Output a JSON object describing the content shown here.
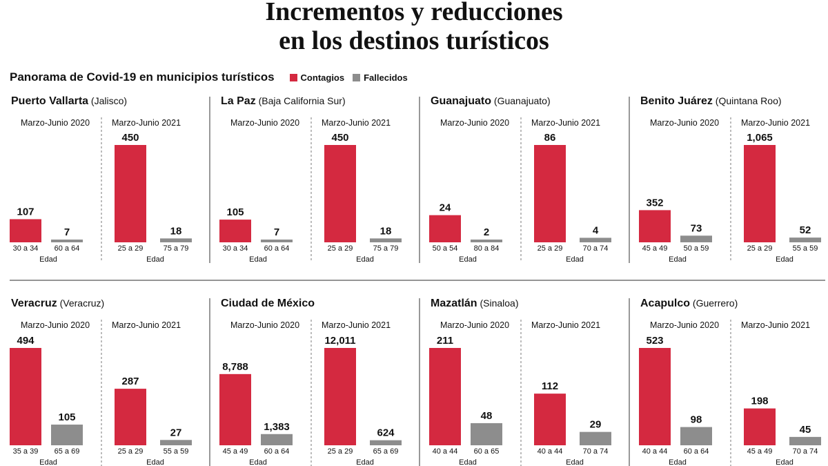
{
  "title": {
    "line1": "Incrementos y reducciones",
    "line2": "en los destinos turísticos"
  },
  "subtitle": "Panorama de Covid-19 en municipios turísticos",
  "legend": [
    {
      "label": "Contagios",
      "color": "#d42940"
    },
    {
      "label": "Fallecidos",
      "color": "#8d8d8d"
    }
  ],
  "colors": {
    "contagios": "#d42940",
    "fallecidos": "#8d8d8d",
    "divider": "#555555"
  },
  "chart_data": [
    {
      "type": "bar",
      "title": "Puerto Vallarta",
      "subtitle": "(Jalisco)",
      "xlabel": "Edad",
      "periods": [
        {
          "label": "Marzo-Junio 2020",
          "bars": [
            {
              "series": "Contagios",
              "value": 107,
              "value_label": "107",
              "category": "30 a 34"
            },
            {
              "series": "Fallecidos",
              "value": 7,
              "value_label": "7",
              "category": "60 a 64"
            }
          ]
        },
        {
          "label": "Marzo-Junio 2021",
          "bars": [
            {
              "series": "Contagios",
              "value": 450,
              "value_label": "450",
              "category": "25 a 29"
            },
            {
              "series": "Fallecidos",
              "value": 18,
              "value_label": "18",
              "category": "75 a 79"
            }
          ]
        }
      ]
    },
    {
      "type": "bar",
      "title": "La Paz",
      "subtitle": "(Baja California Sur)",
      "xlabel": "Edad",
      "periods": [
        {
          "label": "Marzo-Junio 2020",
          "bars": [
            {
              "series": "Contagios",
              "value": 105,
              "value_label": "105",
              "category": "30 a 34"
            },
            {
              "series": "Fallecidos",
              "value": 7,
              "value_label": "7",
              "category": "60 a 64"
            }
          ]
        },
        {
          "label": "Marzo-Junio 2021",
          "bars": [
            {
              "series": "Contagios",
              "value": 450,
              "value_label": "450",
              "category": "25 a 29"
            },
            {
              "series": "Fallecidos",
              "value": 18,
              "value_label": "18",
              "category": "75 a 79"
            }
          ]
        }
      ]
    },
    {
      "type": "bar",
      "title": "Guanajuato",
      "subtitle": "(Guanajuato)",
      "xlabel": "Edad",
      "periods": [
        {
          "label": "Marzo-Junio 2020",
          "bars": [
            {
              "series": "Contagios",
              "value": 24,
              "value_label": "24",
              "category": "50 a 54"
            },
            {
              "series": "Fallecidos",
              "value": 2,
              "value_label": "2",
              "category": "80 a 84"
            }
          ]
        },
        {
          "label": "Marzo-Junio 2021",
          "bars": [
            {
              "series": "Contagios",
              "value": 86,
              "value_label": "86",
              "category": "25 a 29"
            },
            {
              "series": "Fallecidos",
              "value": 4,
              "value_label": "4",
              "category": "70 a 74"
            }
          ]
        }
      ]
    },
    {
      "type": "bar",
      "title": "Benito Juárez",
      "subtitle": "(Quintana Roo)",
      "xlabel": "Edad",
      "periods": [
        {
          "label": "Marzo-Junio 2020",
          "bars": [
            {
              "series": "Contagios",
              "value": 352,
              "value_label": "352",
              "category": "45 a 49"
            },
            {
              "series": "Fallecidos",
              "value": 73,
              "value_label": "73",
              "category": "50 a 59"
            }
          ]
        },
        {
          "label": "Marzo-Junio 2021",
          "bars": [
            {
              "series": "Contagios",
              "value": 1065,
              "value_label": "1,065",
              "category": "25 a 29"
            },
            {
              "series": "Fallecidos",
              "value": 52,
              "value_label": "52",
              "category": "55 a 59"
            }
          ]
        }
      ]
    },
    {
      "type": "bar",
      "title": "Veracruz",
      "subtitle": "(Veracruz)",
      "xlabel": "Edad",
      "periods": [
        {
          "label": "Marzo-Junio 2020",
          "bars": [
            {
              "series": "Contagios",
              "value": 494,
              "value_label": "494",
              "category": "35 a 39"
            },
            {
              "series": "Fallecidos",
              "value": 105,
              "value_label": "105",
              "category": "65 a 69"
            }
          ]
        },
        {
          "label": "Marzo-Junio 2021",
          "bars": [
            {
              "series": "Contagios",
              "value": 287,
              "value_label": "287",
              "category": "25 a 29"
            },
            {
              "series": "Fallecidos",
              "value": 27,
              "value_label": "27",
              "category": "55 a 59"
            }
          ]
        }
      ]
    },
    {
      "type": "bar",
      "title": "Ciudad de México",
      "subtitle": "",
      "xlabel": "Edad",
      "periods": [
        {
          "label": "Marzo-Junio 2020",
          "bars": [
            {
              "series": "Contagios",
              "value": 8788,
              "value_label": "8,788",
              "category": "45 a 49"
            },
            {
              "series": "Fallecidos",
              "value": 1383,
              "value_label": "1,383",
              "category": "60 a 64"
            }
          ]
        },
        {
          "label": "Marzo-Junio 2021",
          "bars": [
            {
              "series": "Contagios",
              "value": 12011,
              "value_label": "12,011",
              "category": "25 a 29"
            },
            {
              "series": "Fallecidos",
              "value": 624,
              "value_label": "624",
              "category": "65 a 69"
            }
          ]
        }
      ]
    },
    {
      "type": "bar",
      "title": "Mazatlán",
      "subtitle": "(Sinaloa)",
      "xlabel": "Edad",
      "periods": [
        {
          "label": "Marzo-Junio 2020",
          "bars": [
            {
              "series": "Contagios",
              "value": 211,
              "value_label": "211",
              "category": "40 a 44"
            },
            {
              "series": "Fallecidos",
              "value": 48,
              "value_label": "48",
              "category": "60 a 65"
            }
          ]
        },
        {
          "label": "Marzo-Junio 2021",
          "bars": [
            {
              "series": "Contagios",
              "value": 112,
              "value_label": "112",
              "category": "40 a 44"
            },
            {
              "series": "Fallecidos",
              "value": 29,
              "value_label": "29",
              "category": "70 a 74"
            }
          ]
        }
      ]
    },
    {
      "type": "bar",
      "title": "Acapulco",
      "subtitle": "(Guerrero)",
      "xlabel": "Edad",
      "periods": [
        {
          "label": "Marzo-Junio 2020",
          "bars": [
            {
              "series": "Contagios",
              "value": 523,
              "value_label": "523",
              "category": "40 a 44"
            },
            {
              "series": "Fallecidos",
              "value": 98,
              "value_label": "98",
              "category": "60 a 64"
            }
          ]
        },
        {
          "label": "Marzo-Junio 2021",
          "bars": [
            {
              "series": "Contagios",
              "value": 198,
              "value_label": "198",
              "category": "45 a 49"
            },
            {
              "series": "Fallecidos",
              "value": 45,
              "value_label": "45",
              "category": "70 a 74"
            }
          ]
        }
      ]
    }
  ]
}
